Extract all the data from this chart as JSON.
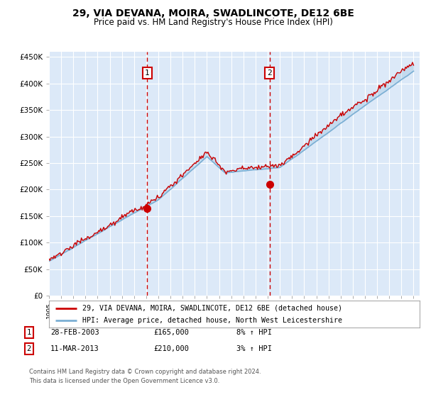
{
  "title": "29, VIA DEVANA, MOIRA, SWADLINCOTE, DE12 6BE",
  "subtitle": "Price paid vs. HM Land Registry's House Price Index (HPI)",
  "legend_line1": "29, VIA DEVANA, MOIRA, SWADLINCOTE, DE12 6BE (detached house)",
  "legend_line2": "HPI: Average price, detached house, North West Leicestershire",
  "sale1_date": "28-FEB-2003",
  "sale1_price": 165000,
  "sale1_hpi": "8% ↑ HPI",
  "sale2_date": "11-MAR-2013",
  "sale2_price": 210000,
  "sale2_hpi": "3% ↑ HPI",
  "footnote1": "Contains HM Land Registry data © Crown copyright and database right 2024.",
  "footnote2": "This data is licensed under the Open Government Licence v3.0.",
  "plot_bg": "#dce9f8",
  "hpi_color": "#7bafd4",
  "price_color": "#cc0000",
  "vline_color": "#cc0000",
  "box_color": "#cc0000",
  "grid_color": "#ffffff",
  "ylim": [
    0,
    460000
  ],
  "xlim": [
    1995,
    2025.5
  ]
}
